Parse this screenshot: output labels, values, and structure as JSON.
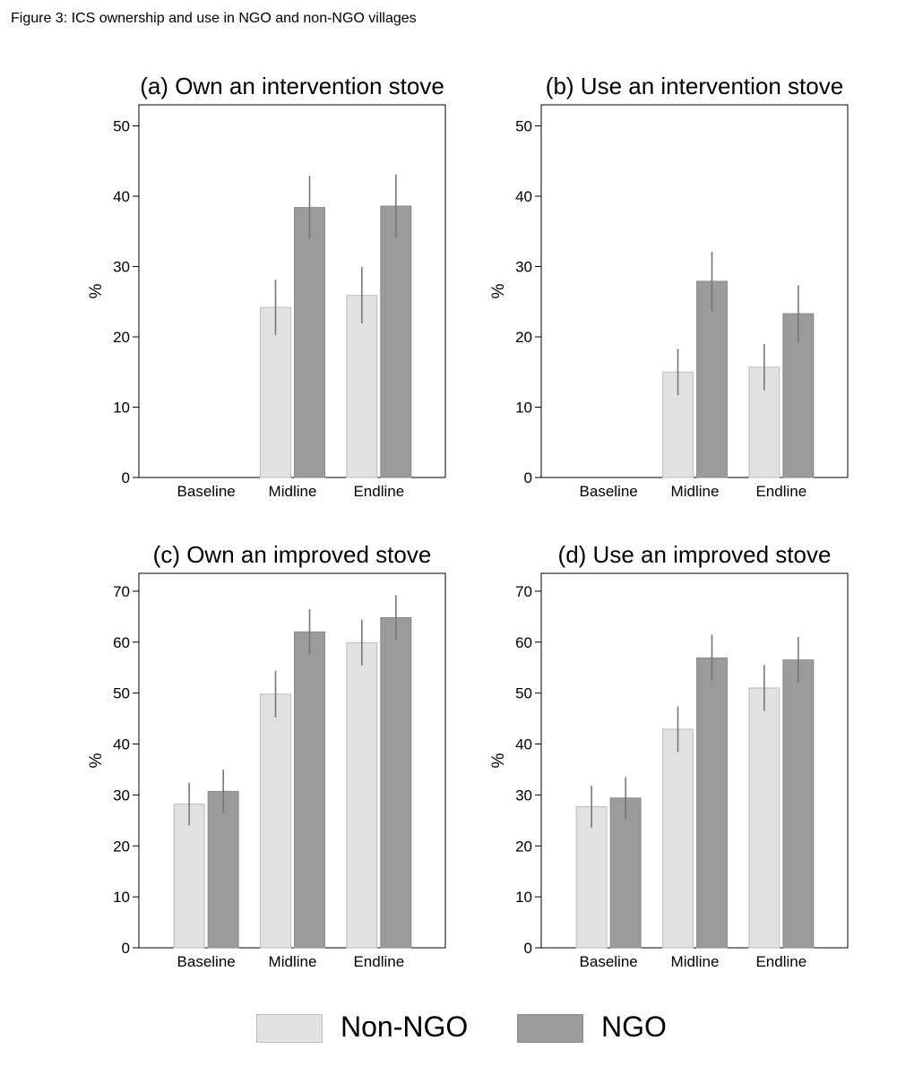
{
  "figure_title": "Figure 3: ICS ownership and use in NGO and non-NGO villages",
  "legend": [
    {
      "label": "Non-NGO",
      "color": "#e1e1e1"
    },
    {
      "label": "NGO",
      "color": "#9b9b9b"
    }
  ],
  "chart_data": [
    {
      "type": "bar",
      "title": "(a) Own an intervention stove",
      "ylabel": "%",
      "xlabel": "",
      "ylim": [
        0,
        53
      ],
      "yticks": [
        0,
        10,
        20,
        30,
        40,
        50
      ],
      "categories": [
        "Baseline",
        "Midline",
        "Endline"
      ],
      "series": [
        {
          "name": "Non-NGO",
          "color": "#e1e1e1",
          "values": [
            0,
            24.2,
            25.9
          ],
          "ci_low": [
            null,
            20.3,
            21.9
          ],
          "ci_high": [
            null,
            28.1,
            29.9
          ]
        },
        {
          "name": "NGO",
          "color": "#9b9b9b",
          "values": [
            0,
            38.4,
            38.6
          ],
          "ci_low": [
            null,
            33.9,
            34.1
          ],
          "ci_high": [
            null,
            42.9,
            43.1
          ]
        }
      ]
    },
    {
      "type": "bar",
      "title": "(b) Use an intervention stove",
      "ylabel": "%",
      "xlabel": "",
      "ylim": [
        0,
        53
      ],
      "yticks": [
        0,
        10,
        20,
        30,
        40,
        50
      ],
      "categories": [
        "Baseline",
        "Midline",
        "Endline"
      ],
      "series": [
        {
          "name": "Non-NGO",
          "color": "#e1e1e1",
          "values": [
            0,
            15.0,
            15.7
          ],
          "ci_low": [
            null,
            11.7,
            12.4
          ],
          "ci_high": [
            null,
            18.3,
            19.0
          ]
        },
        {
          "name": "NGO",
          "color": "#9b9b9b",
          "values": [
            0,
            27.9,
            23.3
          ],
          "ci_low": [
            null,
            23.7,
            19.3
          ],
          "ci_high": [
            null,
            32.1,
            27.3
          ]
        }
      ]
    },
    {
      "type": "bar",
      "title": "(c) Own an improved stove",
      "ylabel": "%",
      "xlabel": "",
      "ylim": [
        0,
        73.5
      ],
      "yticks": [
        0,
        10,
        20,
        30,
        40,
        50,
        60,
        70
      ],
      "categories": [
        "Baseline",
        "Midline",
        "Endline"
      ],
      "series": [
        {
          "name": "Non-NGO",
          "color": "#e1e1e1",
          "values": [
            28.2,
            49.8,
            59.9
          ],
          "ci_low": [
            24.0,
            45.2,
            55.4
          ],
          "ci_high": [
            32.4,
            54.4,
            64.4
          ]
        },
        {
          "name": "NGO",
          "color": "#9b9b9b",
          "values": [
            30.7,
            62.0,
            64.8
          ],
          "ci_low": [
            26.4,
            57.5,
            60.4
          ],
          "ci_high": [
            35.0,
            66.5,
            69.2
          ]
        }
      ]
    },
    {
      "type": "bar",
      "title": "(d) Use an improved stove",
      "ylabel": "%",
      "xlabel": "",
      "ylim": [
        0,
        73.5
      ],
      "yticks": [
        0,
        10,
        20,
        30,
        40,
        50,
        60,
        70
      ],
      "categories": [
        "Baseline",
        "Midline",
        "Endline"
      ],
      "series": [
        {
          "name": "Non-NGO",
          "color": "#e1e1e1",
          "values": [
            27.7,
            42.9,
            51.0
          ],
          "ci_low": [
            23.6,
            38.4,
            46.5
          ],
          "ci_high": [
            31.8,
            47.4,
            55.5
          ]
        },
        {
          "name": "NGO",
          "color": "#9b9b9b",
          "values": [
            29.4,
            56.9,
            56.5
          ],
          "ci_low": [
            25.3,
            52.3,
            52.0
          ],
          "ci_high": [
            33.5,
            61.5,
            61.0
          ]
        }
      ]
    }
  ]
}
